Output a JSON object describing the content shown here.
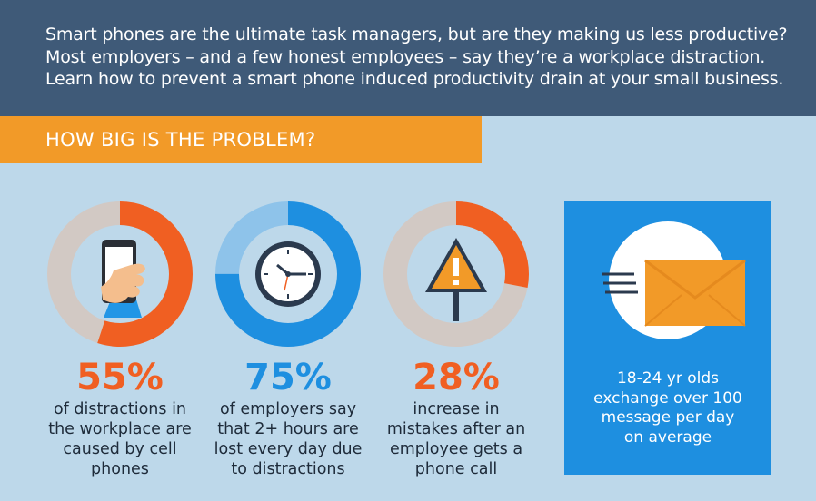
{
  "intro": {
    "line1": "Smart phones are the ultimate task managers, but are they making us less productive?",
    "line2": "Most employers – and a few honest employees – say they’re a workplace distraction.",
    "line3": "Learn how to prevent a smart phone induced productivity drain at your small business."
  },
  "section_title": "HOW BIG IS THE PROBLEM?",
  "colors": {
    "header_bg": "#3f5a78",
    "page_bg": "#bdd8ea",
    "orange": "#f05f22",
    "amber": "#f29a28",
    "blue": "#1e8fe0",
    "gray": "#d2c9c4"
  },
  "stats": [
    {
      "percent": "55%",
      "value": 55,
      "icon": "smartphone-hand-icon",
      "lines": [
        "of distractions in",
        "the workplace are",
        "caused by cell",
        "phones"
      ]
    },
    {
      "percent": "75%",
      "value": 75,
      "icon": "clock-icon",
      "lines": [
        "of employers say",
        "that 2+ hours are",
        "lost every day due",
        "to distractions"
      ]
    },
    {
      "percent": "28%",
      "value": 28,
      "icon": "warning-sign-icon",
      "lines": [
        "increase in",
        "mistakes after an",
        "employee gets a",
        "phone call"
      ]
    }
  ],
  "message_box": {
    "icon": "envelope-icon",
    "lines": [
      "18-24 yr olds",
      "exchange over 100",
      "message per day",
      "on average"
    ]
  }
}
